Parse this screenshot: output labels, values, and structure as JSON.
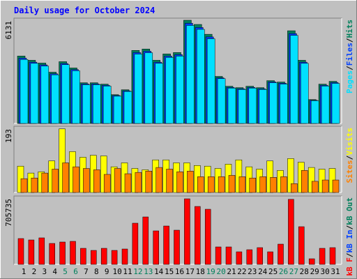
{
  "chart_data": [
    {
      "type": "bar",
      "title": "Daily usage for October 2024",
      "ylim": [
        0,
        6255
      ],
      "yticks": [
        6131
      ],
      "legend_separator": "/",
      "series": [
        {
          "name": "Hits",
          "color": "#00805c",
          "values": [
            4004,
            3754,
            3587,
            3045,
            3670,
            3295,
            2419,
            2419,
            2336,
            1710,
            2002,
            4338,
            4421,
            3754,
            4129,
            4213,
            6131,
            5881,
            5297,
            2795,
            2211,
            2127,
            2211,
            2127,
            2544,
            2461,
            5506,
            3754,
            1418,
            2336,
            2503
          ]
        },
        {
          "name": "Files",
          "color": "#0040ff",
          "values": [
            3880,
            3640,
            3480,
            2950,
            3560,
            3200,
            2350,
            2350,
            2270,
            1660,
            1940,
            4210,
            4290,
            3640,
            4000,
            4090,
            5950,
            5700,
            5140,
            2710,
            2140,
            2060,
            2140,
            2060,
            2470,
            2390,
            5340,
            3640,
            1380,
            2270,
            2430
          ]
        },
        {
          "name": "Pages",
          "color": "#00e0ff",
          "values": [
            3800,
            3570,
            3410,
            2890,
            3490,
            3130,
            2300,
            2300,
            2220,
            1620,
            1900,
            4120,
            4200,
            3570,
            3920,
            4000,
            5820,
            5590,
            5030,
            2660,
            2100,
            2020,
            2100,
            2020,
            2420,
            2340,
            5230,
            3570,
            1350,
            2220,
            2380
          ]
        }
      ]
    },
    {
      "type": "bar",
      "ylim": [
        0,
        201
      ],
      "yticks": [
        193
      ],
      "legend_separator": "/",
      "series": [
        {
          "name": "Visits",
          "color": "#ffff00",
          "values": [
            80,
            59,
            63,
            96,
            193,
            124,
            107,
            113,
            111,
            78,
            90,
            73,
            69,
            99,
            99,
            90,
            90,
            82,
            80,
            73,
            86,
            99,
            78,
            71,
            96,
            67,
            103,
            92,
            76,
            71,
            73
          ]
        },
        {
          "name": "Sites",
          "color": "#ff8000",
          "values": [
            42,
            44,
            59,
            71,
            90,
            78,
            73,
            69,
            55,
            73,
            57,
            61,
            65,
            76,
            71,
            63,
            65,
            48,
            48,
            48,
            52,
            48,
            44,
            48,
            46,
            48,
            27,
            67,
            34,
            38,
            38
          ]
        }
      ]
    },
    {
      "type": "bar",
      "ylim": [
        0,
        735800
      ],
      "yticks": [
        705735
      ],
      "legend_separator": "/",
      "series": [
        {
          "name": "kB F",
          "color": "#ff0000",
          "values": [
            277800,
            262800,
            285300,
            225200,
            240300,
            247800,
            172700,
            150200,
            172700,
            150200,
            165200,
            443000,
            510500,
            360400,
            412900,
            367900,
            705735,
            623200,
            593100,
            187700,
            187700,
            135100,
            157700,
            180200,
            135100,
            217700,
            700000,
            405400,
            60100,
            172700,
            180200
          ]
        }
      ],
      "legend_extra": [
        {
          "name": "kB In",
          "color": "#0040ff"
        },
        {
          "name": "kB Out",
          "color": "#00805c"
        }
      ],
      "categories": [
        "1",
        "2",
        "3",
        "4",
        "5",
        "6",
        "7",
        "8",
        "9",
        "10",
        "11",
        "12",
        "13",
        "14",
        "15",
        "16",
        "17",
        "18",
        "19",
        "20",
        "21",
        "22",
        "23",
        "24",
        "25",
        "26",
        "27",
        "28",
        "29",
        "30",
        "31"
      ],
      "category_colors": [
        "#000000",
        "#000000",
        "#000000",
        "#000000",
        "#00805c",
        "#00805c",
        "#000000",
        "#000000",
        "#000000",
        "#000000",
        "#000000",
        "#00805c",
        "#00805c",
        "#000000",
        "#000000",
        "#000000",
        "#000000",
        "#000000",
        "#00805c",
        "#00805c",
        "#000000",
        "#000000",
        "#000000",
        "#000000",
        "#000000",
        "#00805c",
        "#00805c",
        "#000000",
        "#000000",
        "#000000",
        "#000000"
      ]
    }
  ]
}
